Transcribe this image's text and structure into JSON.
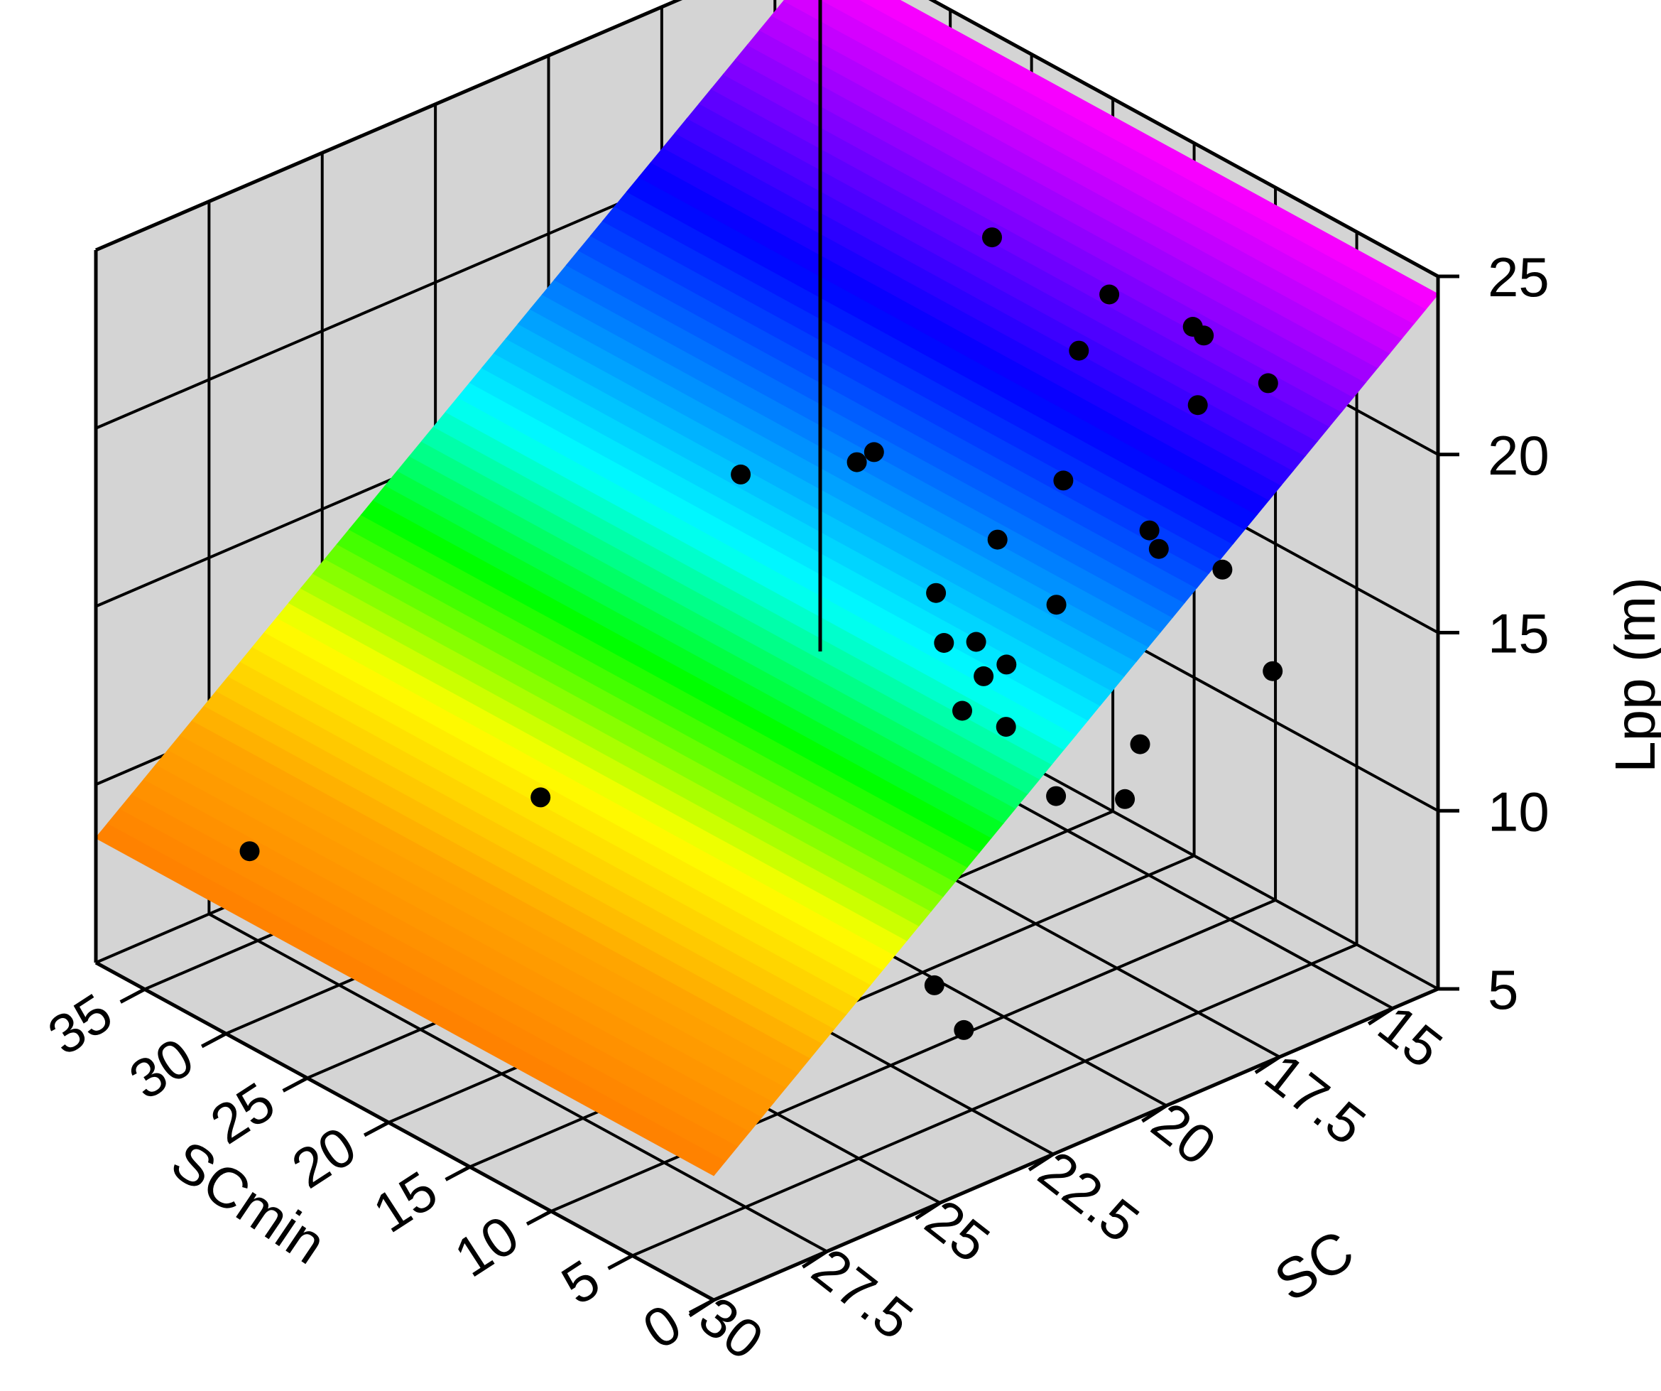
{
  "chart_data": {
    "type": "surface3d",
    "title": "",
    "x_axis": {
      "label": "SCmin",
      "ticks": [
        0,
        5,
        10,
        15,
        20,
        25,
        30,
        35
      ],
      "range": [
        0,
        38
      ]
    },
    "y_axis": {
      "label": "SC",
      "ticks": [
        "30",
        "27.5",
        "25",
        "22.5",
        "20",
        "17.5",
        "15"
      ],
      "tick_values": [
        30,
        27.5,
        25,
        22.5,
        20,
        17.5,
        15
      ],
      "range": [
        30,
        14
      ]
    },
    "z_axis": {
      "label": "Lpp (m)",
      "ticks": [
        5,
        10,
        15,
        20,
        25
      ],
      "range": [
        5,
        25
      ]
    },
    "grid": true,
    "background_color": "#d4d4d4",
    "colormap": [
      "#ff7f00",
      "#ffa500",
      "#ffff00",
      "#00ff00",
      "#00ffff",
      "#0080ff",
      "#0000ff",
      "#8000ff",
      "#ff00ff"
    ],
    "surface": {
      "description_model": "Lpp rises as SC decreases from 30 to 14; nearly constant along SCmin",
      "z_at_sc": {
        "sc": [
          30,
          28,
          26,
          24,
          22,
          20,
          18,
          16,
          14
        ],
        "lpp": [
          8.5,
          10.5,
          12.5,
          14.5,
          16.5,
          18.5,
          20.5,
          22.5,
          24.5
        ]
      }
    },
    "points": [
      {
        "x": 15.6,
        "y": 23.8,
        "z": 20.9
      },
      {
        "x": 9.4,
        "y": 18.9,
        "z": 19.6
      },
      {
        "x": 5.5,
        "y": 18.4,
        "z": 18.9
      },
      {
        "x": 5.2,
        "y": 18.3,
        "z": 18.4
      },
      {
        "x": 2.4,
        "y": 17.9,
        "z": 18.3
      },
      {
        "x": 0.7,
        "y": 17.4,
        "z": 15.6
      },
      {
        "x": 15.7,
        "y": 21.2,
        "z": 19.8
      },
      {
        "x": 15.2,
        "y": 21.0,
        "z": 20.1
      },
      {
        "x": 12.5,
        "y": 20.6,
        "z": 16.6
      },
      {
        "x": 9.0,
        "y": 20.3,
        "z": 15.3
      },
      {
        "x": 13.4,
        "y": 20.1,
        "z": 14.7
      },
      {
        "x": 11.7,
        "y": 20.0,
        "z": 15.1
      },
      {
        "x": 11.5,
        "y": 19.6,
        "z": 17.8
      },
      {
        "x": 11.8,
        "y": 19.8,
        "z": 14.0
      },
      {
        "x": 7.6,
        "y": 19.7,
        "z": 17.0
      },
      {
        "x": 12.0,
        "y": 20.2,
        "z": 13.2
      },
      {
        "x": 10.7,
        "y": 19.7,
        "z": 12.8
      },
      {
        "x": 7.9,
        "y": 19.6,
        "z": 11.5
      },
      {
        "x": 4.4,
        "y": 19.0,
        "z": 13.5
      },
      {
        "x": 4.5,
        "y": 19.3,
        "z": 12.1
      },
      {
        "x": 8.7,
        "y": 22.0,
        "z": 7.3
      },
      {
        "x": 8.0,
        "y": 21.6,
        "z": 6.0
      },
      {
        "x": 22.9,
        "y": 25.6,
        "z": 11.0
      },
      {
        "x": 33.0,
        "y": 28.4,
        "z": 8.5
      },
      {
        "x": 18.8,
        "y": 17.1,
        "z": 23.1
      },
      {
        "x": 12.7,
        "y": 16.7,
        "z": 22.8
      },
      {
        "x": 8.4,
        "y": 16.4,
        "z": 22.8
      },
      {
        "x": 8.0,
        "y": 16.3,
        "z": 22.6
      },
      {
        "x": 4.6,
        "y": 16.1,
        "z": 22.0
      },
      {
        "x": 12.9,
        "y": 17.3,
        "z": 21.5
      },
      {
        "x": 6.7,
        "y": 16.9,
        "z": 21.3
      }
    ]
  }
}
